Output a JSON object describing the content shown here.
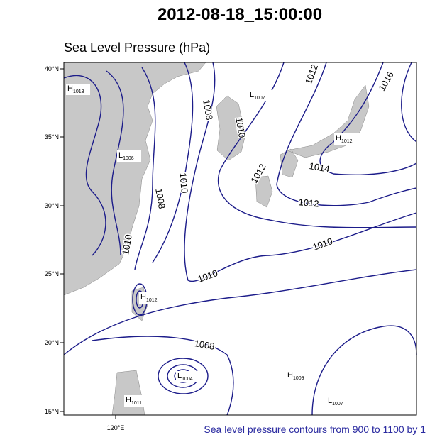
{
  "title": "2012-08-18_15:00:00",
  "subtitle": "Sea Level Pressure (hPa)",
  "footer": "Sea level pressure contours from 900 to 1100 by 1",
  "lat_labels": [
    "40°N",
    "35°N",
    "30°N",
    "25°N",
    "20°N",
    "15°N"
  ],
  "lon_labels": [
    "120°E"
  ],
  "contour_labels": [
    "1012",
    "1016",
    "1008",
    "1010",
    "1012",
    "1014",
    "1012",
    "1008",
    "1010",
    "1010",
    "1010",
    "1010",
    "1008"
  ],
  "centers": [
    {
      "kind": "H",
      "value": "1013"
    },
    {
      "kind": "L",
      "value": "1007"
    },
    {
      "kind": "L",
      "value": "1006"
    },
    {
      "kind": "H",
      "value": "1012"
    },
    {
      "kind": "H",
      "value": "1012"
    },
    {
      "kind": "L",
      "value": "1004"
    },
    {
      "kind": "H",
      "value": "1011"
    },
    {
      "kind": "H",
      "value": "1009"
    },
    {
      "kind": "L",
      "value": "1007"
    }
  ]
}
